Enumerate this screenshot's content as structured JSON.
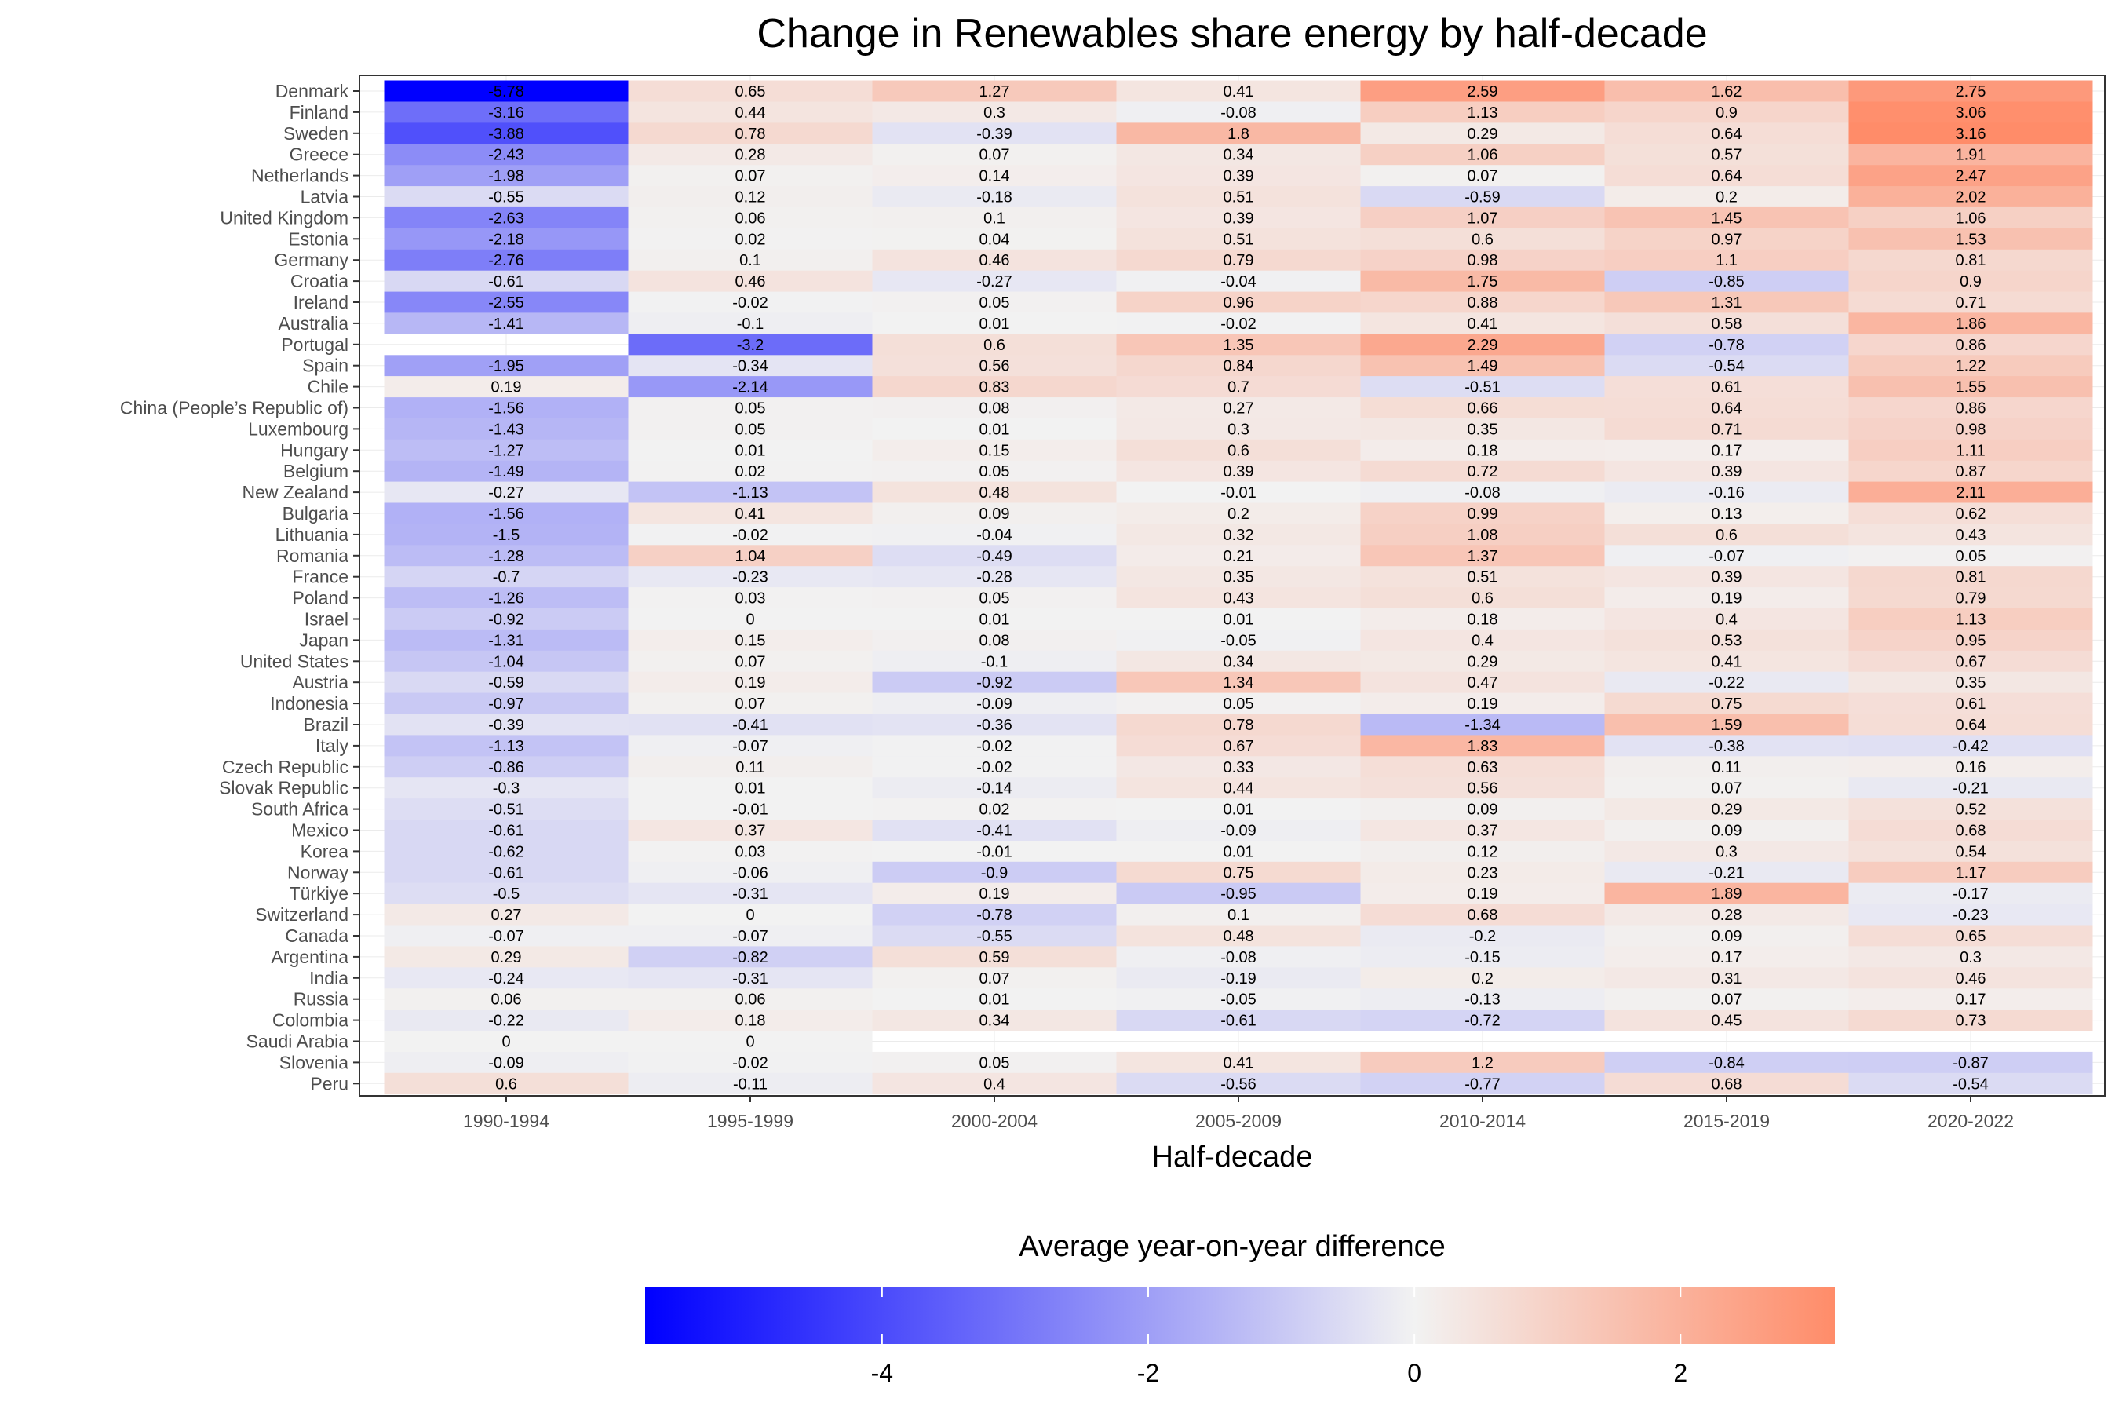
{
  "chart_data": {
    "type": "heatmap",
    "title": "Change in Renewables share energy by half-decade",
    "xlabel": "Half-decade",
    "ylabel": "",
    "legend_title": "Average year-on-year difference",
    "legend_position": "bottom",
    "legend_ticks": [
      "-4",
      "-2",
      "0",
      "2"
    ],
    "color_scale": {
      "min": -5.78,
      "mid": 0,
      "max": 3.16,
      "low": "#0000FF",
      "midcolor": "#F2F2F2",
      "high": "#FF8C69"
    },
    "grid": true,
    "x": [
      "1990-1994",
      "1995-1999",
      "2000-2004",
      "2005-2009",
      "2010-2014",
      "2015-2019",
      "2020-2022"
    ],
    "y": [
      "Denmark",
      "Finland",
      "Sweden",
      "Greece",
      "Netherlands",
      "Latvia",
      "United Kingdom",
      "Estonia",
      "Germany",
      "Croatia",
      "Ireland",
      "Australia",
      "Portugal",
      "Spain",
      "Chile",
      "China (People’s Republic of)",
      "Luxembourg",
      "Hungary",
      "Belgium",
      "New Zealand",
      "Bulgaria",
      "Lithuania",
      "Romania",
      "France",
      "Poland",
      "Israel",
      "Japan",
      "United States",
      "Austria",
      "Indonesia",
      "Brazil",
      "Italy",
      "Czech Republic",
      "Slovak Republic",
      "South Africa",
      "Mexico",
      "Korea",
      "Norway",
      "Türkiye",
      "Switzerland",
      "Canada",
      "Argentina",
      "India",
      "Russia",
      "Colombia",
      "Saudi Arabia",
      "Slovenia",
      "Peru"
    ],
    "values": [
      [
        -5.78,
        0.65,
        1.27,
        0.41,
        2.59,
        1.62,
        2.75
      ],
      [
        -3.16,
        0.44,
        0.3,
        -0.08,
        1.13,
        0.9,
        3.06
      ],
      [
        -3.88,
        0.78,
        -0.39,
        1.8,
        0.29,
        0.64,
        3.16
      ],
      [
        -2.43,
        0.28,
        0.07,
        0.34,
        1.06,
        0.57,
        1.91
      ],
      [
        -1.98,
        0.07,
        0.14,
        0.39,
        0.07,
        0.64,
        2.47
      ],
      [
        -0.55,
        0.12,
        -0.18,
        0.51,
        -0.59,
        0.2,
        2.02
      ],
      [
        -2.63,
        0.06,
        0.1,
        0.39,
        1.07,
        1.45,
        1.06
      ],
      [
        -2.18,
        0.02,
        0.04,
        0.51,
        0.6,
        0.97,
        1.53
      ],
      [
        -2.76,
        0.1,
        0.46,
        0.79,
        0.98,
        1.1,
        0.81
      ],
      [
        -0.61,
        0.46,
        -0.27,
        -0.04,
        1.75,
        -0.85,
        0.9
      ],
      [
        -2.55,
        -0.02,
        0.05,
        0.96,
        0.88,
        1.31,
        0.71
      ],
      [
        -1.41,
        -0.1,
        0.01,
        -0.02,
        0.41,
        0.58,
        1.86
      ],
      [
        null,
        -3.2,
        0.6,
        1.35,
        2.29,
        -0.78,
        0.86
      ],
      [
        -1.95,
        -0.34,
        0.56,
        0.84,
        1.49,
        -0.54,
        1.22
      ],
      [
        0.19,
        -2.14,
        0.83,
        0.7,
        -0.51,
        0.61,
        1.55
      ],
      [
        -1.56,
        0.05,
        0.08,
        0.27,
        0.66,
        0.64,
        0.86
      ],
      [
        -1.43,
        0.05,
        0.01,
        0.3,
        0.35,
        0.71,
        0.98
      ],
      [
        -1.27,
        0.01,
        0.15,
        0.6,
        0.18,
        0.17,
        1.11
      ],
      [
        -1.49,
        0.02,
        0.05,
        0.39,
        0.72,
        0.39,
        0.87
      ],
      [
        -0.27,
        -1.13,
        0.48,
        -0.01,
        -0.08,
        -0.16,
        2.11
      ],
      [
        -1.56,
        0.41,
        0.09,
        0.2,
        0.99,
        0.13,
        0.62
      ],
      [
        -1.5,
        -0.02,
        -0.04,
        0.32,
        1.08,
        0.6,
        0.43
      ],
      [
        -1.28,
        1.04,
        -0.49,
        0.21,
        1.37,
        -0.07,
        0.05
      ],
      [
        -0.7,
        -0.23,
        -0.28,
        0.35,
        0.51,
        0.39,
        0.81
      ],
      [
        -1.26,
        0.03,
        0.05,
        0.43,
        0.6,
        0.19,
        0.79
      ],
      [
        -0.92,
        0,
        0.01,
        0.01,
        0.18,
        0.4,
        1.13
      ],
      [
        -1.31,
        0.15,
        0.08,
        -0.05,
        0.4,
        0.53,
        0.95
      ],
      [
        -1.04,
        0.07,
        -0.1,
        0.34,
        0.29,
        0.41,
        0.67
      ],
      [
        -0.59,
        0.19,
        -0.92,
        1.34,
        0.47,
        -0.22,
        0.35
      ],
      [
        -0.97,
        0.07,
        -0.09,
        0.05,
        0.19,
        0.75,
        0.61
      ],
      [
        -0.39,
        -0.41,
        -0.36,
        0.78,
        -1.34,
        1.59,
        0.64
      ],
      [
        -1.13,
        -0.07,
        -0.02,
        0.67,
        1.83,
        -0.38,
        -0.42
      ],
      [
        -0.86,
        0.11,
        -0.02,
        0.33,
        0.63,
        0.11,
        0.16
      ],
      [
        -0.3,
        0.01,
        -0.14,
        0.44,
        0.56,
        0.07,
        -0.21
      ],
      [
        -0.51,
        -0.01,
        0.02,
        0.01,
        0.09,
        0.29,
        0.52
      ],
      [
        -0.61,
        0.37,
        -0.41,
        -0.09,
        0.37,
        0.09,
        0.68
      ],
      [
        -0.62,
        0.03,
        -0.01,
        0.01,
        0.12,
        0.3,
        0.54
      ],
      [
        -0.61,
        -0.06,
        -0.9,
        0.75,
        0.23,
        -0.21,
        1.17
      ],
      [
        -0.5,
        -0.31,
        0.19,
        -0.95,
        0.19,
        1.89,
        -0.17
      ],
      [
        0.27,
        0,
        -0.78,
        0.1,
        0.68,
        0.28,
        -0.23
      ],
      [
        -0.07,
        -0.07,
        -0.55,
        0.48,
        -0.2,
        0.09,
        0.65
      ],
      [
        0.29,
        -0.82,
        0.59,
        -0.08,
        -0.15,
        0.17,
        0.3
      ],
      [
        -0.24,
        -0.31,
        0.07,
        -0.19,
        0.2,
        0.31,
        0.46
      ],
      [
        0.06,
        0.06,
        0.01,
        -0.05,
        -0.13,
        0.07,
        0.17
      ],
      [
        -0.22,
        0.18,
        0.34,
        -0.61,
        -0.72,
        0.45,
        0.73
      ],
      [
        0,
        0,
        null,
        null,
        null,
        null,
        null
      ],
      [
        -0.09,
        -0.02,
        0.05,
        0.41,
        1.2,
        -0.84,
        -0.87
      ],
      [
        0.6,
        -0.11,
        0.4,
        -0.56,
        -0.77,
        0.68,
        -0.54
      ]
    ]
  }
}
